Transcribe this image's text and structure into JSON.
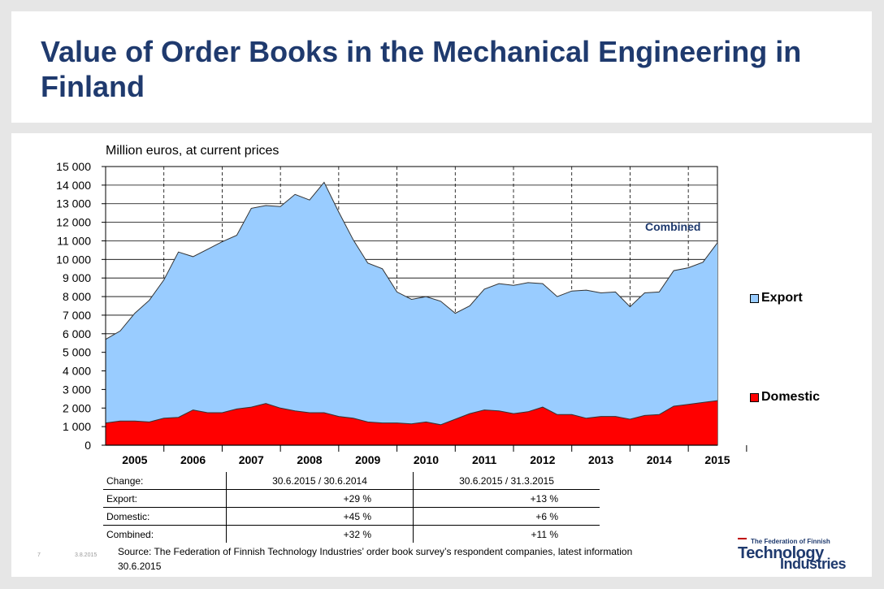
{
  "slide": {
    "title": "Value of Order Books in the Mechanical Engineering in Finland",
    "slide_number": "7",
    "date": "3.8.2015",
    "source": "Source: The Federation of Finnish Technology Industries’ order book survey’s respondent companies, latest information 30.6.2015"
  },
  "logo": {
    "line1": "The Federation of Finnish",
    "line2": "Technology",
    "line3": "Industries"
  },
  "chart_data": {
    "type": "area",
    "ylabel": "Million euros, at current prices",
    "ylim": [
      0,
      15000
    ],
    "yticks": [
      "0",
      "1 000",
      "2 000",
      "3 000",
      "4 000",
      "5 000",
      "6 000",
      "7 000",
      "8 000",
      "9 000",
      "10 000",
      "11 000",
      "12 000",
      "13 000",
      "14 000",
      "15 000"
    ],
    "years": [
      "2005",
      "2006",
      "2007",
      "2008",
      "2009",
      "2010",
      "2011",
      "2012",
      "2013",
      "2014",
      "2015"
    ],
    "x_start": 2005.0,
    "x_step": 0.25,
    "stacked": true,
    "annotation": "Combined",
    "grid": true,
    "legend_position": "right",
    "series": [
      {
        "name": "Domestic",
        "color": "#ff0000",
        "values": [
          1200,
          1300,
          1300,
          1250,
          1450,
          1500,
          1900,
          1750,
          1750,
          1950,
          2050,
          2250,
          2000,
          1850,
          1750,
          1750,
          1550,
          1450,
          1250,
          1200,
          1200,
          1150,
          1250,
          1100,
          1400,
          1700,
          1900,
          1850,
          1700,
          1800,
          2050,
          1650,
          1650,
          1450,
          1550,
          1550,
          1400,
          1600,
          1650,
          2100,
          2200,
          2300,
          2400
        ]
      },
      {
        "name": "Export",
        "color": "#99ccff",
        "values": [
          4500,
          4850,
          5800,
          6550,
          7450,
          8900,
          8250,
          8800,
          9200,
          9350,
          10700,
          10650,
          10850,
          11650,
          11450,
          12400,
          11000,
          9600,
          8550,
          8300,
          7050,
          6700,
          6750,
          6650,
          5700,
          5800,
          6500,
          6850,
          6900,
          6950,
          6650,
          6350,
          6650,
          6900,
          6650,
          6700,
          6050,
          6600,
          6600,
          7300,
          7350,
          7550,
          8500
        ]
      }
    ],
    "combined_values": [
      5700,
      6150,
      7100,
      7800,
      8900,
      10400,
      10150,
      10550,
      10950,
      11300,
      12750,
      12900,
      12850,
      13500,
      13200,
      14150,
      12550,
      11050,
      9800,
      9500,
      8250,
      7850,
      8000,
      7750,
      7100,
      7500,
      8400,
      8700,
      8600,
      8750,
      8700,
      8000,
      8300,
      8350,
      8200,
      8250,
      7450,
      8200,
      8250,
      9400,
      9550,
      9850,
      10900
    ]
  },
  "change_table": {
    "headers": [
      "Change:",
      "30.6.2015 / 30.6.2014",
      "30.6.2015 / 31.3.2015"
    ],
    "rows": [
      [
        "Export:",
        "+29 %",
        "+13 %"
      ],
      [
        "Domestic:",
        "+45 %",
        "+6 %"
      ],
      [
        "Combined:",
        "+32 %",
        "+11 %"
      ]
    ]
  }
}
